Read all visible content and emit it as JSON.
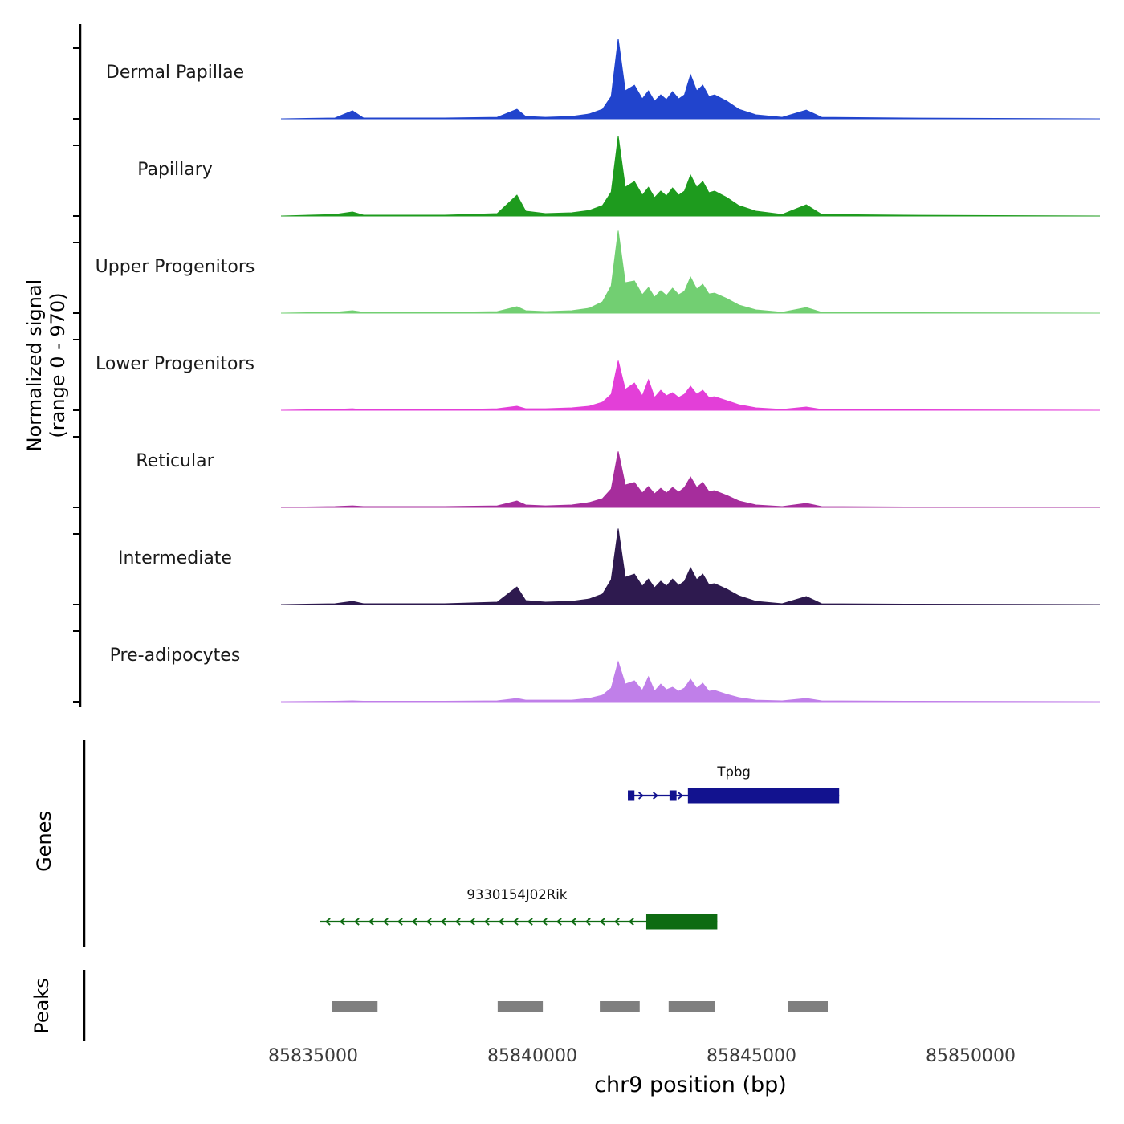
{
  "figure": {
    "genes_section_label": "Genes",
    "peaks_section_label": "Peaks"
  },
  "chart_data": {
    "type": "area",
    "xlabel": "chr9 position (bp)",
    "ylabel_line1": "Normalized signal",
    "ylabel_line2": "(range 0 - 970)",
    "y_range": [
      0,
      970
    ],
    "x_ticks": [
      85835000,
      85840000,
      85845000,
      85850000
    ],
    "bp": [
      85834300,
      85835500,
      85835900,
      85836150,
      85838000,
      85839200,
      85839650,
      85839850,
      85840300,
      85840900,
      85841300,
      85841600,
      85841800,
      85841960,
      85842120,
      85842330,
      85842510,
      85842650,
      85842790,
      85842930,
      85843060,
      85843200,
      85843340,
      85843470,
      85843610,
      85843750,
      85843890,
      85844030,
      85844160,
      85844440,
      85844710,
      85845100,
      85845700,
      85846250,
      85846600,
      85848500,
      85852900
    ],
    "tracks": [
      {
        "name": "Dermal Papillae",
        "color": "#2144cd",
        "values": [
          0,
          9,
          92,
          9,
          9,
          18,
          110,
          28,
          18,
          28,
          55,
          110,
          258,
          920,
          322,
          386,
          230,
          322,
          202,
          276,
          221,
          313,
          230,
          276,
          506,
          322,
          386,
          258,
          276,
          202,
          110,
          46,
          18,
          101,
          18,
          9,
          0
        ]
      },
      {
        "name": "Papillary",
        "color": "#1e9b1e",
        "values": [
          0,
          18,
          46,
          9,
          9,
          28,
          240,
          55,
          28,
          37,
          64,
          120,
          276,
          920,
          331,
          396,
          240,
          331,
          212,
          286,
          230,
          322,
          240,
          286,
          470,
          331,
          396,
          268,
          286,
          212,
          120,
          55,
          18,
          129,
          18,
          9,
          0
        ]
      },
      {
        "name": "Upper Progenitors",
        "color": "#72cf72",
        "values": [
          0,
          9,
          28,
          9,
          9,
          18,
          74,
          28,
          18,
          28,
          55,
          129,
          313,
          948,
          350,
          370,
          212,
          294,
          184,
          258,
          202,
          286,
          212,
          250,
          414,
          276,
          331,
          221,
          230,
          166,
          92,
          37,
          9,
          64,
          9,
          5,
          0
        ]
      },
      {
        "name": "Lower Progenitors",
        "color": "#e33fd8",
        "values": [
          0,
          9,
          18,
          5,
          5,
          18,
          46,
          18,
          18,
          28,
          46,
          92,
          184,
          570,
          240,
          313,
          166,
          350,
          147,
          230,
          166,
          202,
          147,
          184,
          276,
          184,
          230,
          147,
          156,
          110,
          64,
          28,
          9,
          37,
          9,
          5,
          0
        ]
      },
      {
        "name": "Reticular",
        "color": "#a62d9c",
        "values": [
          0,
          9,
          18,
          9,
          9,
          18,
          74,
          28,
          18,
          28,
          55,
          101,
          212,
          644,
          258,
          286,
          166,
          240,
          156,
          221,
          166,
          230,
          176,
          230,
          350,
          230,
          286,
          184,
          193,
          138,
          74,
          28,
          9,
          46,
          9,
          5,
          0
        ]
      },
      {
        "name": "Intermediate",
        "color": "#2e1a4f",
        "values": [
          0,
          9,
          37,
          9,
          9,
          28,
          202,
          46,
          28,
          37,
          64,
          120,
          286,
          874,
          313,
          350,
          212,
          294,
          193,
          268,
          212,
          294,
          221,
          268,
          423,
          286,
          350,
          230,
          240,
          176,
          101,
          37,
          9,
          92,
          9,
          5,
          0
        ]
      },
      {
        "name": "Pre-adipocytes",
        "color": "#c07fe9",
        "values": [
          0,
          5,
          9,
          5,
          5,
          9,
          37,
          18,
          18,
          18,
          37,
          74,
          156,
          460,
          202,
          240,
          129,
          286,
          120,
          202,
          138,
          166,
          120,
          156,
          258,
          156,
          212,
          120,
          129,
          83,
          46,
          18,
          9,
          37,
          9,
          5,
          0
        ]
      }
    ],
    "genes": [
      {
        "name": "Tpbg",
        "strand": "+",
        "color": "#12128f",
        "start": 85842180,
        "end": 85847000,
        "label_center_bp": 85844600,
        "exons": [
          {
            "start": 85842180,
            "end": 85842330,
            "size": "small"
          },
          {
            "start": 85843130,
            "end": 85843290,
            "size": "small"
          },
          {
            "start": 85843550,
            "end": 85847000,
            "size": "large"
          }
        ],
        "arrow_positions_bp": [
          85842520,
          85842850,
          85843420
        ]
      },
      {
        "name": "9330154J02Rik",
        "strand": "-",
        "color": "#0e6b12",
        "start": 85835150,
        "end": 85844220,
        "label_center_bp": 85839650,
        "exons": [
          {
            "start": 85842600,
            "end": 85844220,
            "size": "large"
          }
        ]
      }
    ],
    "peaks": [
      {
        "start": 85835430,
        "end": 85836470
      },
      {
        "start": 85839210,
        "end": 85840240
      },
      {
        "start": 85841540,
        "end": 85842450
      },
      {
        "start": 85843110,
        "end": 85844160
      },
      {
        "start": 85845840,
        "end": 85846740
      }
    ],
    "peak_color": "#7f7f7f"
  }
}
